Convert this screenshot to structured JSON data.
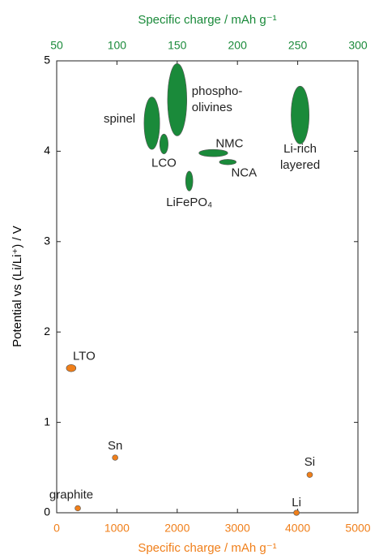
{
  "chart_data": {
    "type": "scatter",
    "x_label": "Specific charge / mAh g⁻¹",
    "x2_label": "Specific charge / mAh g⁻¹",
    "y_label": "Potential vs (Li/Li⁺) / V",
    "xlim": [
      0,
      5000
    ],
    "xticks": [
      0,
      1000,
      2000,
      3000,
      4000,
      5000
    ],
    "x2lim": [
      50,
      300
    ],
    "x2ticks": [
      50,
      100,
      150,
      200,
      250,
      300
    ],
    "ylim": [
      0,
      5
    ],
    "yticks": [
      0,
      1,
      2,
      3,
      4,
      5
    ],
    "x_color": "#f07f1a",
    "x2_color": "#1a8a3a",
    "series": [
      {
        "axis": "x2",
        "color": "#1a8a3a",
        "labels": [
          [
            "spinel"
          ],
          [
            "LCO"
          ],
          [
            "phospho-",
            "olivines"
          ],
          [
            "NMC"
          ],
          [
            "NCA"
          ],
          [
            "LiFePO₄"
          ],
          [
            "Li-rich",
            "layered"
          ]
        ],
        "x": [
          129,
          139,
          150,
          180,
          192,
          160,
          252
        ],
        "y": [
          4.31,
          4.08,
          4.57,
          3.98,
          3.88,
          3.67,
          4.4
        ],
        "dx": [
          6.5,
          3.5,
          8,
          12,
          7,
          3,
          7.5
        ],
        "dy": [
          0.29,
          0.11,
          0.4,
          0.04,
          0.03,
          0.11,
          0.32
        ]
      },
      {
        "axis": "x",
        "color": "#f07f1a",
        "labels": [
          [
            "LTO"
          ],
          [
            "Sn"
          ],
          [
            "graphite"
          ],
          [
            "Li"
          ],
          [
            "Si"
          ]
        ],
        "x": [
          240,
          970,
          350,
          3980,
          4200
        ],
        "y": [
          1.6,
          0.61,
          0.05,
          0,
          0.42
        ],
        "dx": [
          80,
          47,
          47,
          47,
          47
        ],
        "dy": [
          0.04,
          0.03,
          0.03,
          0.03,
          0.03
        ]
      }
    ]
  }
}
